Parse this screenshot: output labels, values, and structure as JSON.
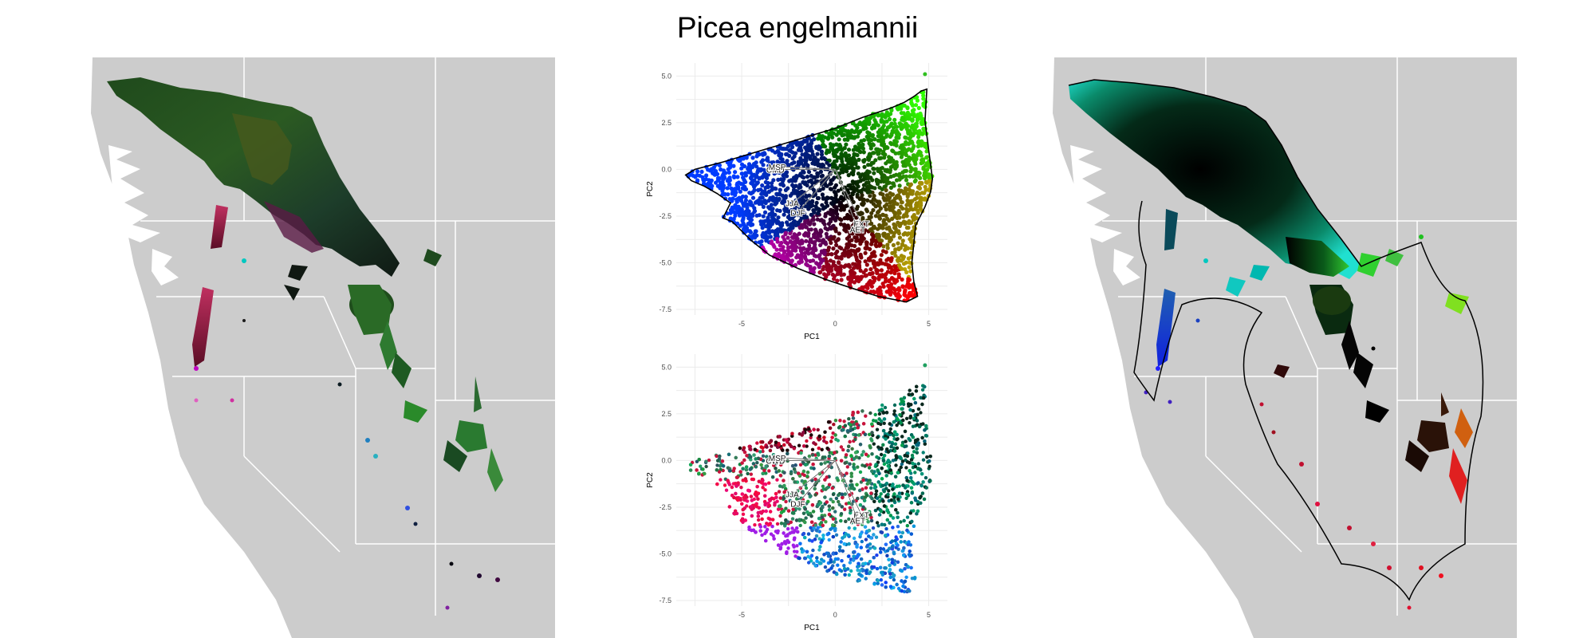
{
  "title": "Picea engelmannii",
  "chart_data": [
    {
      "type": "scatter",
      "panel": "pca-climate-space-colored-by-position",
      "xlabel": "PC1",
      "ylabel": "PC2",
      "xlim": [
        -8.5,
        6
      ],
      "ylim": [
        -7.8,
        5.7
      ],
      "xticks": [
        -5,
        0,
        5
      ],
      "yticks": [
        -7.5,
        -5.0,
        -2.5,
        0.0,
        2.5,
        5.0
      ],
      "ytick_labels": [
        "-7.5",
        "-5.0",
        "-2.5",
        "0.0",
        "2.5",
        "5.0"
      ],
      "grid": true,
      "hull": [
        [
          -8.0,
          -0.3
        ],
        [
          -7.5,
          0.0
        ],
        [
          -6.0,
          0.4
        ],
        [
          -4.0,
          1.0
        ],
        [
          -2.0,
          1.6
        ],
        [
          0.0,
          2.2
        ],
        [
          1.5,
          2.8
        ],
        [
          3.0,
          3.3
        ],
        [
          3.7,
          3.6
        ],
        [
          4.2,
          3.9
        ],
        [
          4.6,
          4.2
        ],
        [
          4.9,
          4.3
        ],
        [
          4.8,
          2.6
        ],
        [
          5.0,
          1.0
        ],
        [
          5.2,
          -0.5
        ],
        [
          5.1,
          -1.2
        ],
        [
          4.8,
          -2.0
        ],
        [
          4.3,
          -3.0
        ],
        [
          4.2,
          -4.0
        ],
        [
          4.1,
          -5.0
        ],
        [
          4.2,
          -6.0
        ],
        [
          4.4,
          -6.8
        ],
        [
          3.8,
          -7.1
        ],
        [
          2.3,
          -6.8
        ],
        [
          1.0,
          -6.4
        ],
        [
          -0.5,
          -5.9
        ],
        [
          -2.0,
          -5.3
        ],
        [
          -3.5,
          -4.6
        ],
        [
          -4.5,
          -3.8
        ],
        [
          -5.5,
          -2.8
        ],
        [
          -6.0,
          -2.6
        ],
        [
          -5.6,
          -1.8
        ],
        [
          -6.3,
          -1.3
        ],
        [
          -7.0,
          -0.9
        ],
        [
          -7.7,
          -0.6
        ]
      ],
      "vectors_origin": [
        0,
        0
      ],
      "vectors": [
        {
          "label": "CMD",
          "x": -3.2,
          "y": 0.0
        },
        {
          "label": "MSP",
          "x": -3.1,
          "y": 0.15
        },
        {
          "label": "JJA",
          "x": -2.3,
          "y": -1.8
        },
        {
          "label": "DJF",
          "x": -2.0,
          "y": -2.3
        },
        {
          "label": "EXT",
          "x": 1.4,
          "y": -2.9
        },
        {
          "label": "AET",
          "x": 1.2,
          "y": -3.2
        }
      ]
    },
    {
      "type": "scatter",
      "panel": "pca-colored-by-geographic-location",
      "xlabel": "PC1",
      "ylabel": "PC2",
      "xlim": [
        -8.5,
        6
      ],
      "ylim": [
        -7.8,
        5.7
      ],
      "xticks": [
        -5,
        0,
        5
      ],
      "yticks": [
        -7.5,
        -5.0,
        -2.5,
        0.0,
        2.5,
        5.0
      ],
      "ytick_labels": [
        "-7.5",
        "-5.0",
        "-2.5",
        "0.0",
        "2.5",
        "5.0"
      ],
      "grid": true,
      "vectors_origin": [
        0,
        0
      ],
      "vectors": [
        {
          "label": "CWD",
          "x": -3.2,
          "y": 0.0
        },
        {
          "label": "MSP",
          "x": -3.1,
          "y": 0.15
        },
        {
          "label": "JJA",
          "x": -2.3,
          "y": -1.8
        },
        {
          "label": "DJF",
          "x": -2.0,
          "y": -2.3
        },
        {
          "label": "EXT",
          "x": 1.4,
          "y": -2.9
        },
        {
          "label": "AET",
          "x": 1.2,
          "y": -3.2
        }
      ]
    }
  ],
  "colors": {
    "map_background": "#cccccc",
    "ocean": "#ffffff",
    "borders": "#ffffff",
    "hull_line": "#000000"
  }
}
